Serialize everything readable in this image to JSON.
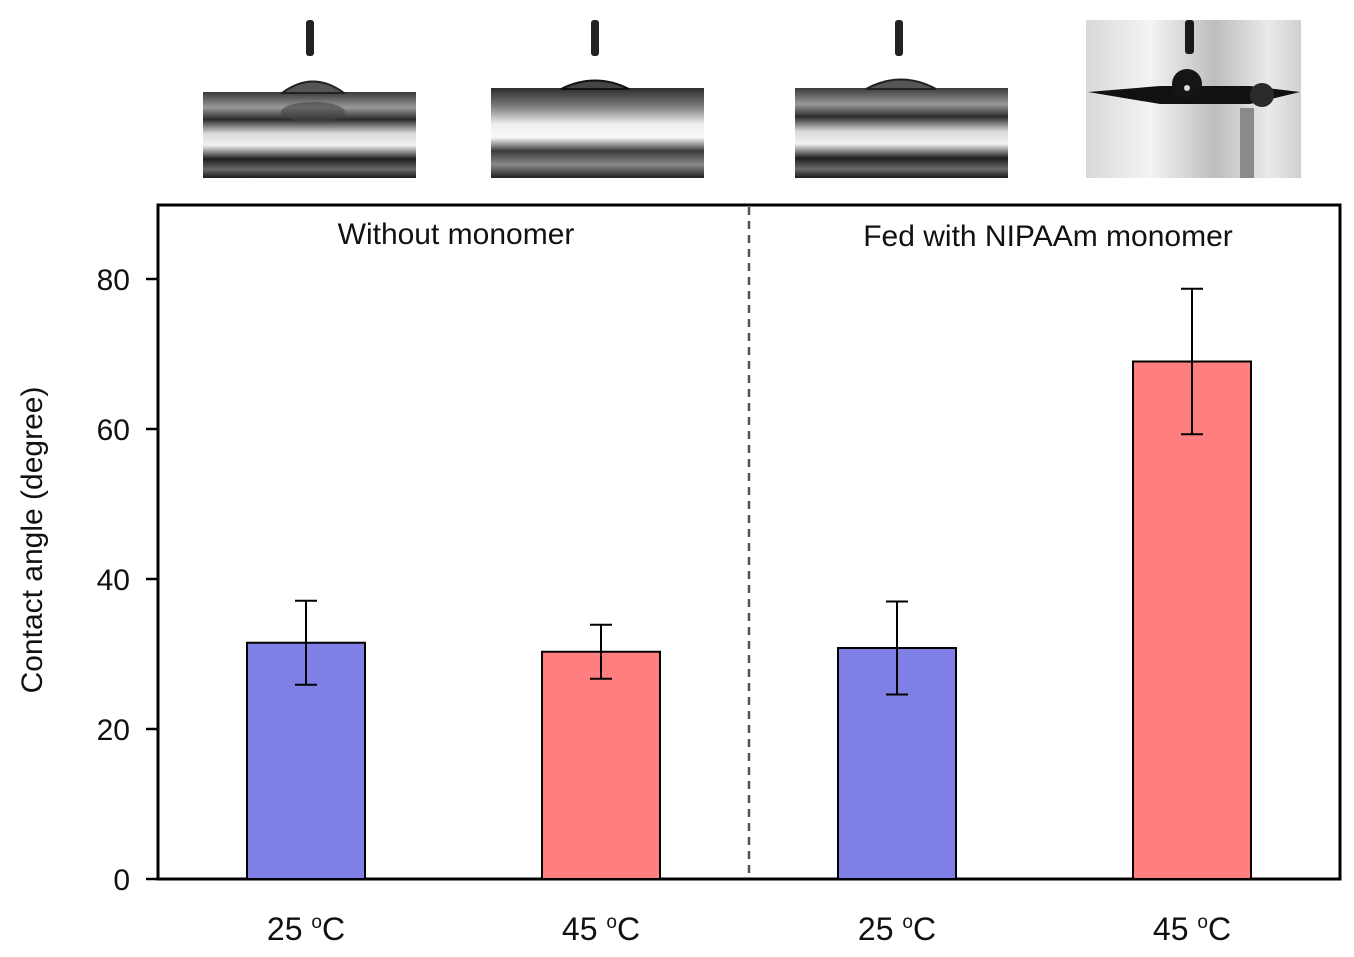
{
  "chart_data": {
    "type": "bar",
    "title": "",
    "ylabel": "Contact angle (degree)",
    "xlabel": "",
    "ylim": [
      0,
      90
    ],
    "yticks": [
      0,
      20,
      40,
      60,
      80
    ],
    "grid": false,
    "groups": [
      {
        "label": "Without monomer",
        "categories": [
          "25 oC",
          "45 oC"
        ]
      },
      {
        "label": "Fed with NIPAAm monomer",
        "categories": [
          "25 oC",
          "45 oC"
        ]
      }
    ],
    "categories": [
      {
        "temp": "25",
        "unit_sup": "o",
        "unit": "C"
      },
      {
        "temp": "45",
        "unit_sup": "o",
        "unit": "C"
      },
      {
        "temp": "25",
        "unit_sup": "o",
        "unit": "C"
      },
      {
        "temp": "45",
        "unit_sup": "o",
        "unit": "C"
      }
    ],
    "values": [
      31.5,
      30.3,
      30.8,
      69.0
    ],
    "errors": [
      5.6,
      3.6,
      6.2,
      9.7
    ],
    "colors": [
      "#7f7fe5",
      "#ff7f7f",
      "#7f7fe5",
      "#ff7f7f"
    ]
  },
  "photos": [
    {
      "name": "droplet-photo-1"
    },
    {
      "name": "droplet-photo-2"
    },
    {
      "name": "droplet-photo-3"
    },
    {
      "name": "droplet-photo-4"
    }
  ]
}
